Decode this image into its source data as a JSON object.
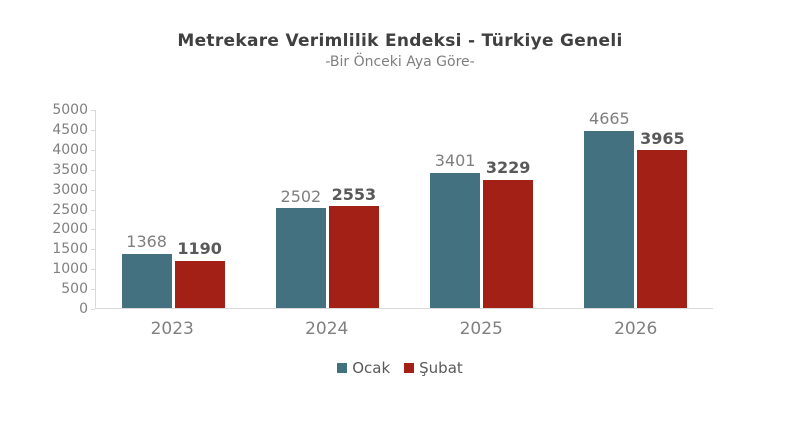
{
  "header": {
    "title": "Metrekare Verimlilik Endeksi - Türkiye Geneli",
    "subtitle": "-Bir Önceki Aya Göre-"
  },
  "colors": {
    "ocak": "#44717f",
    "subat": "#a22015",
    "axis_line": "#d9d9d9",
    "title_text": "#404040",
    "muted_text": "#808080",
    "bold_label_text": "#595959"
  },
  "chart_data": {
    "type": "bar",
    "title": "Metrekare Verimlilik Endeksi - Türkiye Geneli",
    "subtitle": "-Bir Önceki Aya Göre-",
    "categories": [
      "2023",
      "2024",
      "2025",
      "2026"
    ],
    "series": [
      {
        "name": "Ocak",
        "color": "#44717f",
        "values": [
          1368,
          2502,
          3401,
          4665
        ]
      },
      {
        "name": "Şubat",
        "color": "#a22015",
        "values": [
          1190,
          2553,
          3229,
          3965
        ]
      }
    ],
    "xlabel": "",
    "ylabel": "",
    "ylim": [
      0,
      5000
    ],
    "ytick_step": 500,
    "grid": false,
    "data_labels": true,
    "legend_position": "bottom"
  }
}
